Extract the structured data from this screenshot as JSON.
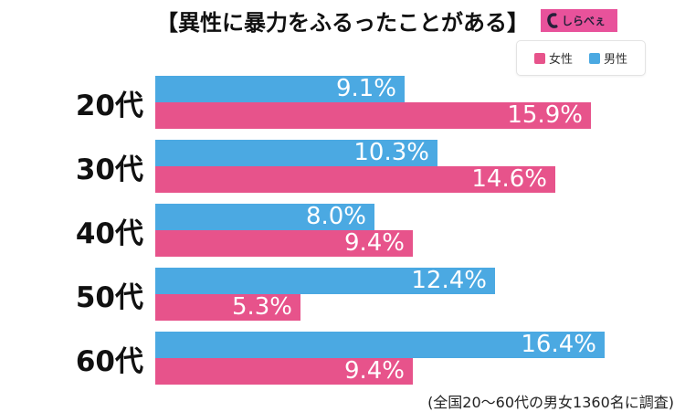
{
  "header": {
    "title": "【異性に暴力をふるったことがある】",
    "logo_text": "しらべぇ"
  },
  "legend": {
    "items": [
      {
        "label": "女性",
        "color": "#e7538b"
      },
      {
        "label": "男性",
        "color": "#4ba9e2"
      }
    ]
  },
  "chart_data": {
    "type": "bar",
    "orientation": "horizontal",
    "title": "【異性に暴力をふるったことがある】",
    "categories": [
      "20代",
      "30代",
      "40代",
      "50代",
      "60代"
    ],
    "series": [
      {
        "name": "男性",
        "color": "#4ba9e2",
        "values": [
          9.1,
          10.3,
          8.0,
          12.4,
          16.4
        ],
        "display": [
          "9.1%",
          "10.3%",
          "8.0%",
          "12.4%",
          "16.4%"
        ]
      },
      {
        "name": "女性",
        "color": "#e7538b",
        "values": [
          15.9,
          14.6,
          9.4,
          5.3,
          9.4
        ],
        "display": [
          "15.9%",
          "14.6%",
          "9.4%",
          "5.3%",
          "9.4%"
        ]
      }
    ],
    "bar_order_top_to_bottom": [
      "男性",
      "女性"
    ],
    "value_labels": "inside-end",
    "xlabel": "",
    "ylabel": "",
    "xlim": [
      0,
      19.3
    ],
    "grid": false,
    "legend_position": "top-right"
  },
  "footer": {
    "note": "(全国20〜60代の男女1360名に調査)"
  }
}
